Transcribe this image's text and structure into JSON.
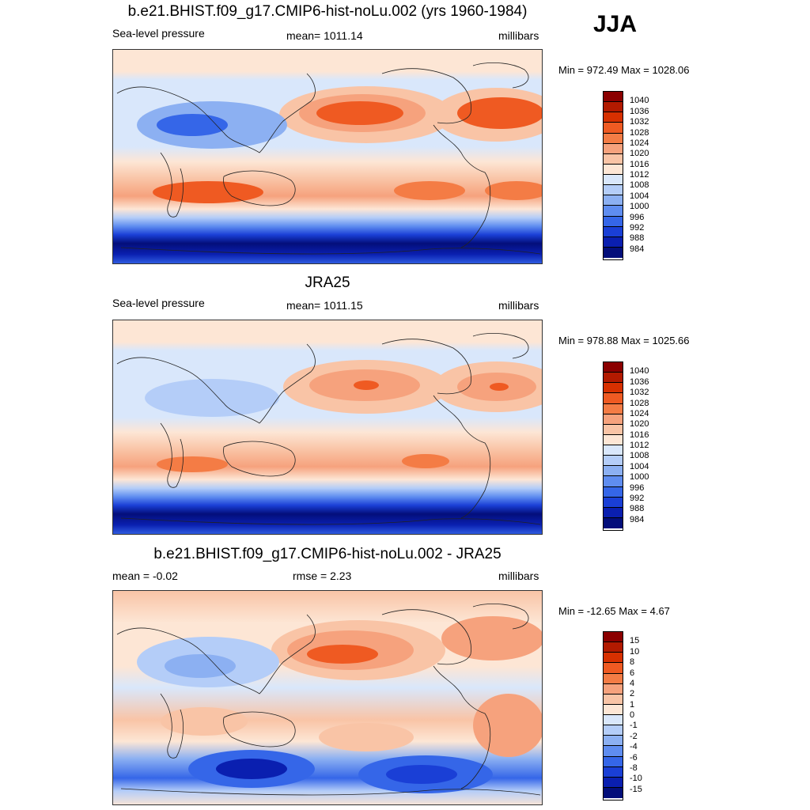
{
  "season": "JJA",
  "panels": [
    {
      "title": "b.e21.BHIST.f09_g17.CMIP6-hist-noLu.002 (yrs 1960-1984)",
      "left_label": "Sea-level pressure",
      "center_label": "mean= 1011.14",
      "right_label": "millibars",
      "minmax": "Min = 972.49 Max = 1028.06"
    },
    {
      "title": "JRA25",
      "left_label": "Sea-level pressure",
      "center_label": "mean= 1011.15",
      "right_label": "millibars",
      "minmax": "Min = 978.88 Max = 1025.66"
    },
    {
      "title": "b.e21.BHIST.f09_g17.CMIP6-hist-noLu.002 - JRA25",
      "left_label": "mean =  -0.02",
      "center_label": "rmse =   2.23",
      "right_label": "millibars",
      "minmax": "Min = -12.65 Max =   4.67"
    }
  ],
  "colorbars": {
    "slp_labels": [
      "1040",
      "1036",
      "1032",
      "1028",
      "1024",
      "1020",
      "1016",
      "1012",
      "1008",
      "1004",
      "1000",
      "996",
      "992",
      "988",
      "984"
    ],
    "diff_labels": [
      "15",
      "10",
      "8",
      "6",
      "4",
      "2",
      "1",
      "0",
      "-1",
      "-2",
      "-4",
      "-6",
      "-8",
      "-10",
      "-15"
    ],
    "colors": [
      "#8b0000",
      "#b21a00",
      "#d73000",
      "#ef5a22",
      "#f47c45",
      "#f6a27d",
      "#f9c4a6",
      "#fde6d5",
      "#d9e7fb",
      "#b4cdf8",
      "#8cb0f2",
      "#5f8df0",
      "#3566e8",
      "#1a3fd6",
      "#0a1fb0",
      "#030e7a"
    ]
  }
}
